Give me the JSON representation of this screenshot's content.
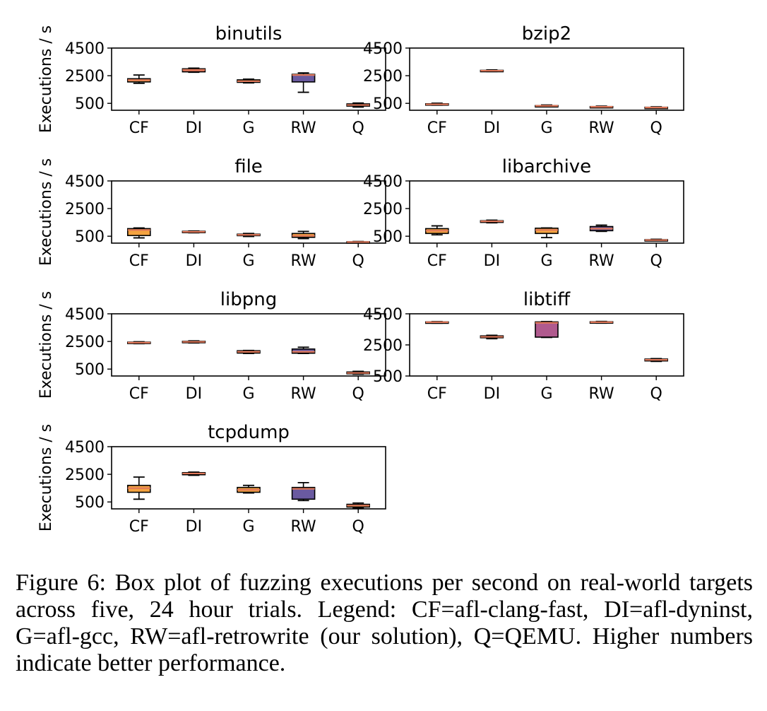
{
  "chart_data": [
    {
      "type": "box",
      "title": "binutils",
      "ylabel": "Executions / s",
      "ylim": [
        0,
        4500
      ],
      "yticks": [
        500,
        2500,
        4500
      ],
      "categories": [
        "CF",
        "DI",
        "G",
        "RW",
        "Q"
      ],
      "boxes": [
        {
          "whislo": 1950,
          "q1": 2050,
          "med": 2180,
          "q3": 2280,
          "whishi": 2550,
          "color": "#f4a340"
        },
        {
          "whislo": 2750,
          "q1": 2780,
          "med": 2920,
          "q3": 3000,
          "whishi": 3050,
          "color": "#e8735a"
        },
        {
          "whislo": 1980,
          "q1": 2020,
          "med": 2100,
          "q3": 2200,
          "whishi": 2250,
          "color": "#f4a340"
        },
        {
          "whislo": 1300,
          "q1": 2050,
          "med": 2550,
          "q3": 2600,
          "whishi": 2700,
          "color": "#6a5aa0"
        },
        {
          "whislo": 230,
          "q1": 300,
          "med": 380,
          "q3": 460,
          "whishi": 520,
          "color": "#f4a340"
        }
      ]
    },
    {
      "type": "box",
      "title": "bzip2",
      "ylabel": "",
      "ylim": [
        0,
        4500
      ],
      "yticks": [
        500,
        2500,
        4500
      ],
      "categories": [
        "CF",
        "DI",
        "G",
        "RW",
        "Q"
      ],
      "boxes": [
        {
          "whislo": 370,
          "q1": 400,
          "med": 430,
          "q3": 470,
          "whishi": 510,
          "color": "#f4a340"
        },
        {
          "whislo": 2800,
          "q1": 2830,
          "med": 2860,
          "q3": 2890,
          "whishi": 2920,
          "color": "#f4a340"
        },
        {
          "whislo": 260,
          "q1": 290,
          "med": 320,
          "q3": 340,
          "whishi": 380,
          "color": "#f4a340"
        },
        {
          "whislo": 200,
          "q1": 230,
          "med": 250,
          "q3": 270,
          "whishi": 300,
          "color": "#f4a340"
        },
        {
          "whislo": 140,
          "q1": 170,
          "med": 200,
          "q3": 220,
          "whishi": 250,
          "color": "#f4a340"
        }
      ]
    },
    {
      "type": "box",
      "title": "file",
      "ylabel": "Executions / s",
      "ylim": [
        0,
        4500
      ],
      "yticks": [
        500,
        2500,
        4500
      ],
      "categories": [
        "CF",
        "DI",
        "G",
        "RW",
        "Q"
      ],
      "boxes": [
        {
          "whislo": 380,
          "q1": 550,
          "med": 950,
          "q3": 1050,
          "whishi": 1100,
          "color": "#f4a340"
        },
        {
          "whislo": 750,
          "q1": 780,
          "med": 820,
          "q3": 860,
          "whishi": 880,
          "color": "#f4a340"
        },
        {
          "whislo": 480,
          "q1": 540,
          "med": 600,
          "q3": 650,
          "whishi": 700,
          "color": "#f4a340"
        },
        {
          "whislo": 330,
          "q1": 420,
          "med": 530,
          "q3": 700,
          "whishi": 850,
          "color": "#f4a340"
        },
        {
          "whislo": 40,
          "q1": 60,
          "med": 80,
          "q3": 100,
          "whishi": 120,
          "color": "#f4a340"
        }
      ]
    },
    {
      "type": "box",
      "title": "libarchive",
      "ylabel": "",
      "ylim": [
        0,
        4500
      ],
      "yticks": [
        500,
        2500,
        4500
      ],
      "categories": [
        "CF",
        "DI",
        "G",
        "RW",
        "Q"
      ],
      "boxes": [
        {
          "whislo": 600,
          "q1": 700,
          "med": 900,
          "q3": 1050,
          "whishi": 1250,
          "color": "#f4a340"
        },
        {
          "whislo": 1470,
          "q1": 1500,
          "med": 1580,
          "q3": 1620,
          "whishi": 1660,
          "color": "#f4a340"
        },
        {
          "whislo": 400,
          "q1": 700,
          "med": 950,
          "q3": 1080,
          "whishi": 1100,
          "color": "#f4a340"
        },
        {
          "whislo": 850,
          "q1": 900,
          "med": 1050,
          "q3": 1200,
          "whishi": 1300,
          "color": "#6a5aa0"
        },
        {
          "whislo": 170,
          "q1": 190,
          "med": 220,
          "q3": 250,
          "whishi": 280,
          "color": "#f4a340"
        }
      ]
    },
    {
      "type": "box",
      "title": "libpng",
      "ylabel": "Executions / s",
      "ylim": [
        0,
        4500
      ],
      "yticks": [
        500,
        2500,
        4500
      ],
      "categories": [
        "CF",
        "DI",
        "G",
        "RW",
        "Q"
      ],
      "boxes": [
        {
          "whislo": 2340,
          "q1": 2370,
          "med": 2410,
          "q3": 2450,
          "whishi": 2480,
          "color": "#f4a340"
        },
        {
          "whislo": 2390,
          "q1": 2420,
          "med": 2470,
          "q3": 2510,
          "whishi": 2540,
          "color": "#f4a340"
        },
        {
          "whislo": 1630,
          "q1": 1660,
          "med": 1750,
          "q3": 1830,
          "whishi": 1850,
          "color": "#f4a340"
        },
        {
          "whislo": 1630,
          "q1": 1650,
          "med": 1750,
          "q3": 1950,
          "whishi": 2080,
          "color": "#6a5aa0"
        },
        {
          "whislo": 130,
          "q1": 160,
          "med": 220,
          "q3": 290,
          "whishi": 340,
          "color": "#f4a340"
        }
      ]
    },
    {
      "type": "box",
      "title": "libtiff",
      "ylabel": "",
      "ylim": [
        500,
        4500
      ],
      "yticks": [
        500,
        2500,
        4500
      ],
      "categories": [
        "CF",
        "DI",
        "G",
        "RW",
        "Q"
      ],
      "boxes": [
        {
          "whislo": 3900,
          "q1": 3920,
          "med": 3960,
          "q3": 3980,
          "whishi": 4000,
          "color": "#f4a340"
        },
        {
          "whislo": 2900,
          "q1": 2960,
          "med": 3020,
          "q3": 3080,
          "whishi": 3120,
          "color": "#f4a340"
        },
        {
          "whislo": 2980,
          "q1": 3000,
          "med": 3920,
          "q3": 3980,
          "whishi": 4000,
          "color": "#b05a8e"
        },
        {
          "whislo": 3900,
          "q1": 3920,
          "med": 3960,
          "q3": 3990,
          "whishi": 4010,
          "color": "#f4a340"
        },
        {
          "whislo": 1440,
          "q1": 1470,
          "med": 1540,
          "q3": 1590,
          "whishi": 1620,
          "color": "#f4a340"
        }
      ]
    },
    {
      "type": "box",
      "title": "tcpdump",
      "ylabel": "Executions / s",
      "ylim": [
        0,
        4500
      ],
      "yticks": [
        500,
        2500,
        4500
      ],
      "categories": [
        "CF",
        "DI",
        "G",
        "RW",
        "Q"
      ],
      "boxes": [
        {
          "whislo": 700,
          "q1": 1200,
          "med": 1500,
          "q3": 1700,
          "whishi": 2300,
          "color": "#f4a340"
        },
        {
          "whislo": 2430,
          "q1": 2470,
          "med": 2560,
          "q3": 2620,
          "whishi": 2660,
          "color": "#f4a340"
        },
        {
          "whislo": 1150,
          "q1": 1200,
          "med": 1380,
          "q3": 1550,
          "whishi": 1700,
          "color": "#f4a340"
        },
        {
          "whislo": 600,
          "q1": 700,
          "med": 1450,
          "q3": 1550,
          "whishi": 1900,
          "color": "#6a5aa0"
        },
        {
          "whislo": 60,
          "q1": 130,
          "med": 240,
          "q3": 330,
          "whishi": 420,
          "color": "#f4a340"
        }
      ]
    }
  ],
  "style": {
    "median_color": "#e0785a",
    "axis_color": "#000000"
  },
  "caption": "Figure 6: Box plot of fuzzing executions per second on real-world targets across five, 24 hour trials. Legend: CF=afl-clang-fast, DI=afl-dyninst, G=afl-gcc, RW=afl-retrowrite (our solution), Q=QEMU. Higher numbers indicate better performance."
}
